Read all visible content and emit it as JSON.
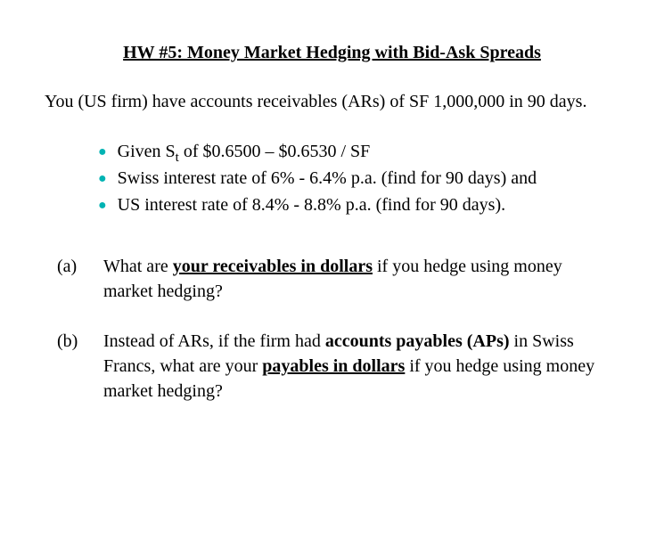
{
  "title": "HW #5: Money Market Hedging with Bid-Ask Spreads",
  "intro": "You (US firm) have accounts receivables (ARs) of SF 1,000,000 in 90 days.",
  "bullets": {
    "b1_pre": "Given S",
    "b1_sub": "t",
    "b1_post": " of $0.6500 – $0.6530 / SF",
    "b2": "Swiss interest rate of 6% - 6.4% p.a. (find for 90 days) and",
    "b3": "US interest rate of 8.4% - 8.8% p.a. (find for 90 days)."
  },
  "qa": {
    "label": "(a)",
    "t1": "What are ",
    "t2": "your receivables in dollars",
    "t3": "  if you hedge using money market hedging?"
  },
  "qb": {
    "label": "(b)",
    "t1": "Instead of ARs, if the firm had ",
    "t2": "accounts payables (APs)",
    "t3": " in Swiss Francs, what are your ",
    "t4": "payables in dollars",
    "t5": "  if you hedge using money market hedging?"
  },
  "colors": {
    "bullet": "#00b3b3",
    "text": "#000000",
    "background": "#ffffff"
  },
  "fontsize_body": 20,
  "fontsize_title": 20
}
